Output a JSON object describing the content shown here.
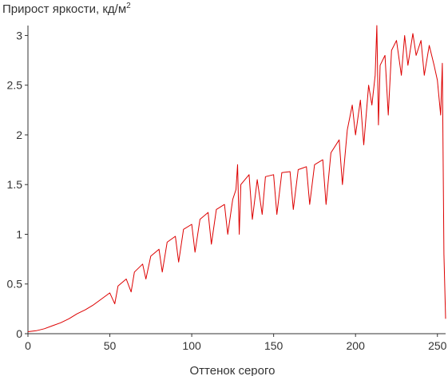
{
  "chart_data": {
    "type": "line",
    "title": "Прирост яркости, кд/м",
    "title_superscript": "2",
    "xlabel": "Оттенок серого",
    "ylabel": "",
    "xlim": [
      0,
      255
    ],
    "ylim": [
      0,
      3.1
    ],
    "x_ticks": [
      0,
      50,
      100,
      150,
      200,
      250
    ],
    "y_ticks": [
      0,
      0.5,
      1,
      1.5,
      2,
      2.5,
      3
    ],
    "y_tick_labels": [
      "0",
      "0.5",
      "1",
      "1.5",
      "2",
      "2.5",
      "3"
    ],
    "grid": false,
    "legend": "none",
    "colors": {
      "series": "#dd0000",
      "axis": "#333333"
    },
    "series": [
      {
        "x": [
          0,
          5,
          10,
          15,
          20,
          25,
          30,
          35,
          40,
          45,
          50,
          53,
          55,
          60,
          63,
          65,
          70,
          72,
          75,
          80,
          82,
          85,
          90,
          92,
          95,
          100,
          102,
          105,
          110,
          112,
          115,
          120,
          122,
          125,
          127,
          128,
          129,
          130,
          135,
          137,
          140,
          143,
          145,
          150,
          152,
          155,
          160,
          162,
          165,
          170,
          172,
          175,
          180,
          182,
          185,
          190,
          192,
          195,
          198,
          200,
          203,
          205,
          208,
          210,
          212,
          213,
          214,
          215,
          218,
          220,
          222,
          225,
          228,
          230,
          232,
          235,
          237,
          240,
          242,
          245,
          248,
          250,
          252,
          253,
          254,
          255
        ],
        "y": [
          0.02,
          0.03,
          0.05,
          0.08,
          0.11,
          0.15,
          0.2,
          0.24,
          0.29,
          0.35,
          0.41,
          0.3,
          0.48,
          0.55,
          0.42,
          0.62,
          0.7,
          0.55,
          0.78,
          0.85,
          0.62,
          0.92,
          0.98,
          0.72,
          1.05,
          1.1,
          0.82,
          1.15,
          1.22,
          0.9,
          1.25,
          1.3,
          1.0,
          1.35,
          1.45,
          1.7,
          1.0,
          1.5,
          1.6,
          1.15,
          1.55,
          1.2,
          1.58,
          1.6,
          1.2,
          1.62,
          1.63,
          1.25,
          1.65,
          1.68,
          1.3,
          1.7,
          1.75,
          1.3,
          1.82,
          1.95,
          1.5,
          2.05,
          2.3,
          2.0,
          2.35,
          1.9,
          2.5,
          2.3,
          2.6,
          3.1,
          2.1,
          2.7,
          2.8,
          2.2,
          2.85,
          2.95,
          2.6,
          3.0,
          2.7,
          3.02,
          2.8,
          2.95,
          2.6,
          2.9,
          2.7,
          2.55,
          2.2,
          2.72,
          0.8,
          0.15
        ]
      }
    ]
  }
}
